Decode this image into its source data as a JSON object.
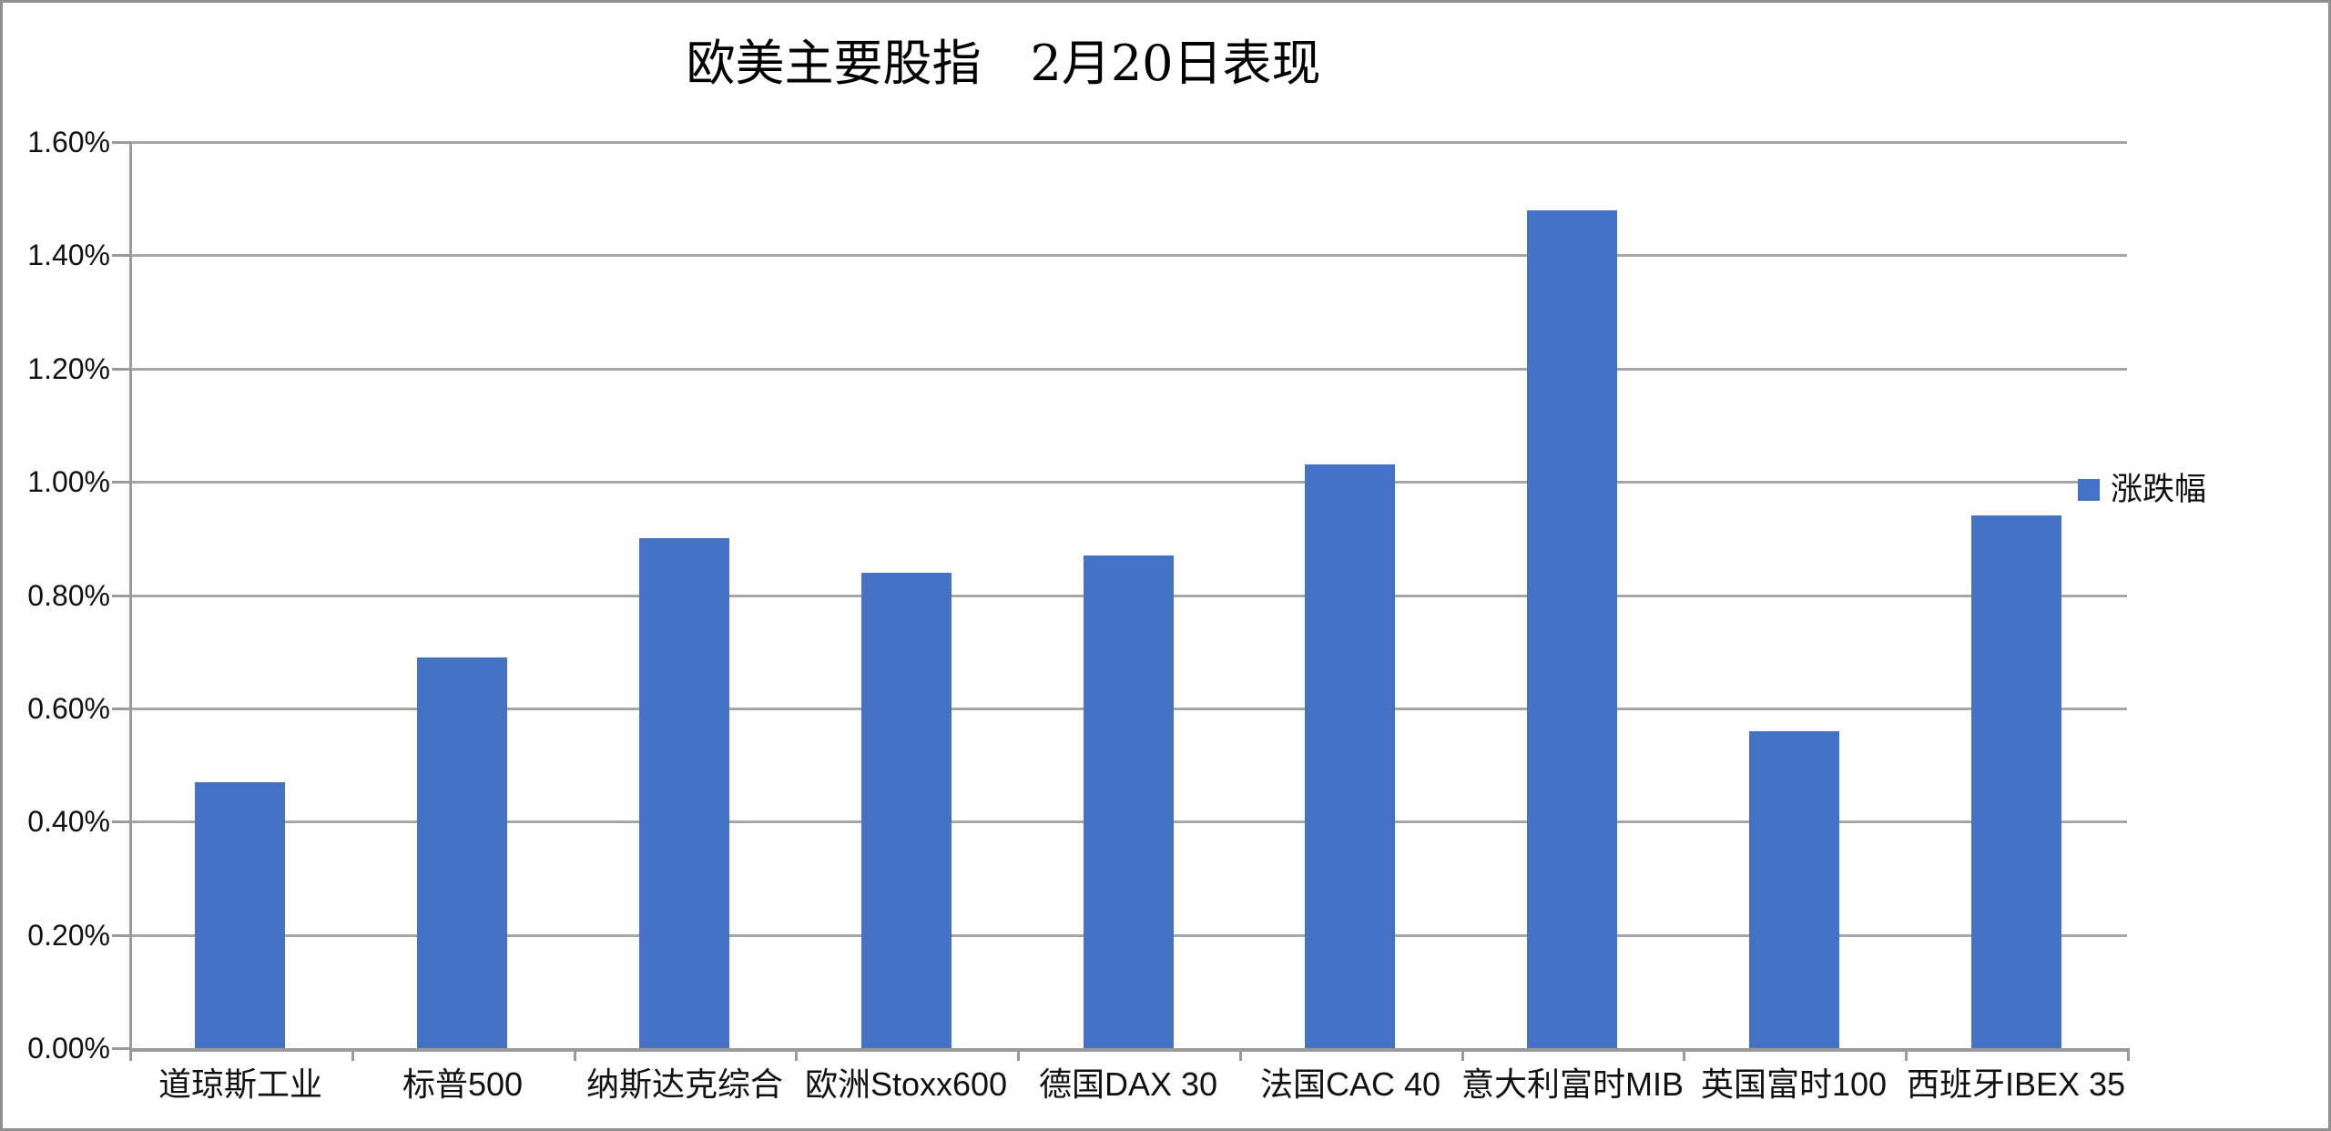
{
  "title": "欧美主要股指　2月20日表现",
  "legend": {
    "label": "涨跌幅"
  },
  "colors": {
    "bar": "#4472c4",
    "gridline": "#a6a6a6",
    "axis": "#9b9b9b",
    "frame_border": "#8f8f8f",
    "text": "#111111"
  },
  "chart_data": {
    "type": "bar",
    "title": "欧美主要股指　2月20日表现",
    "categories": [
      "道琼斯工业",
      "标普500",
      "纳斯达克综合",
      "欧洲Stoxx600",
      "德国DAX 30",
      "法国CAC 40",
      "意大利富时MIB",
      "英国富时100",
      "西班牙IBEX 35"
    ],
    "series": [
      {
        "name": "涨跌幅",
        "values": [
          0.47,
          0.69,
          0.9,
          0.84,
          0.87,
          1.03,
          1.48,
          0.56,
          0.94
        ]
      }
    ],
    "unit": "%",
    "xlabel": "",
    "ylabel": "",
    "ylim": [
      0,
      1.6
    ],
    "ytick_step": 0.2,
    "ytick_labels": [
      "0.00%",
      "0.20%",
      "0.40%",
      "0.60%",
      "0.80%",
      "1.00%",
      "1.20%",
      "1.40%",
      "1.60%"
    ],
    "grid": true,
    "legend_position": "right",
    "bar_color": "#4472c4"
  }
}
